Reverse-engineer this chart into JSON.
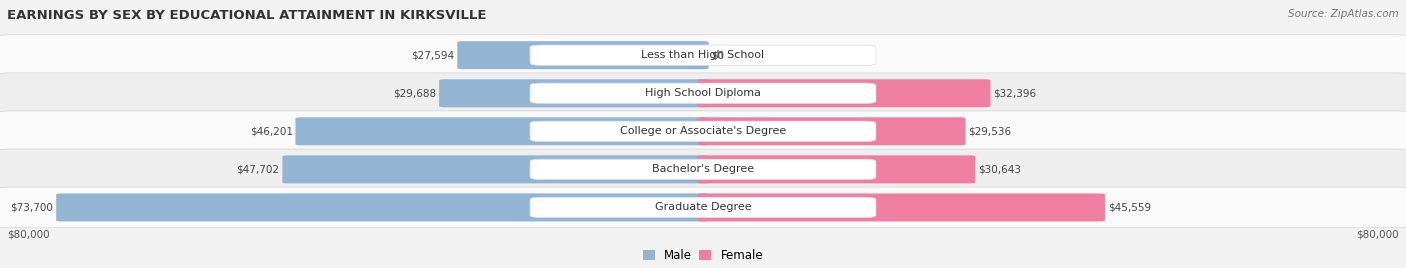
{
  "title": "EARNINGS BY SEX BY EDUCATIONAL ATTAINMENT IN KIRKSVILLE",
  "source": "Source: ZipAtlas.com",
  "categories": [
    "Less than High School",
    "High School Diploma",
    "College or Associate's Degree",
    "Bachelor's Degree",
    "Graduate Degree"
  ],
  "male_values": [
    27594,
    29688,
    46201,
    47702,
    73700
  ],
  "female_values": [
    0,
    32396,
    29536,
    30643,
    45559
  ],
  "male_color": "#94B4D4",
  "female_color": "#EE7FA0",
  "max_val": 80000,
  "row_bg_colors": [
    "#FAFAFA",
    "#EEEEEE"
  ],
  "row_border_color": "#CCCCCC",
  "fig_bg_color": "#F2F2F2",
  "title_color": "#333333",
  "value_color": "#444444",
  "label_color": "#333333",
  "title_fontsize": 9.5,
  "label_fontsize": 8.0,
  "value_fontsize": 7.5,
  "source_fontsize": 7.5,
  "axis_fontsize": 7.5,
  "axis_label": "$80,000",
  "legend_male": "Male",
  "legend_female": "Female"
}
